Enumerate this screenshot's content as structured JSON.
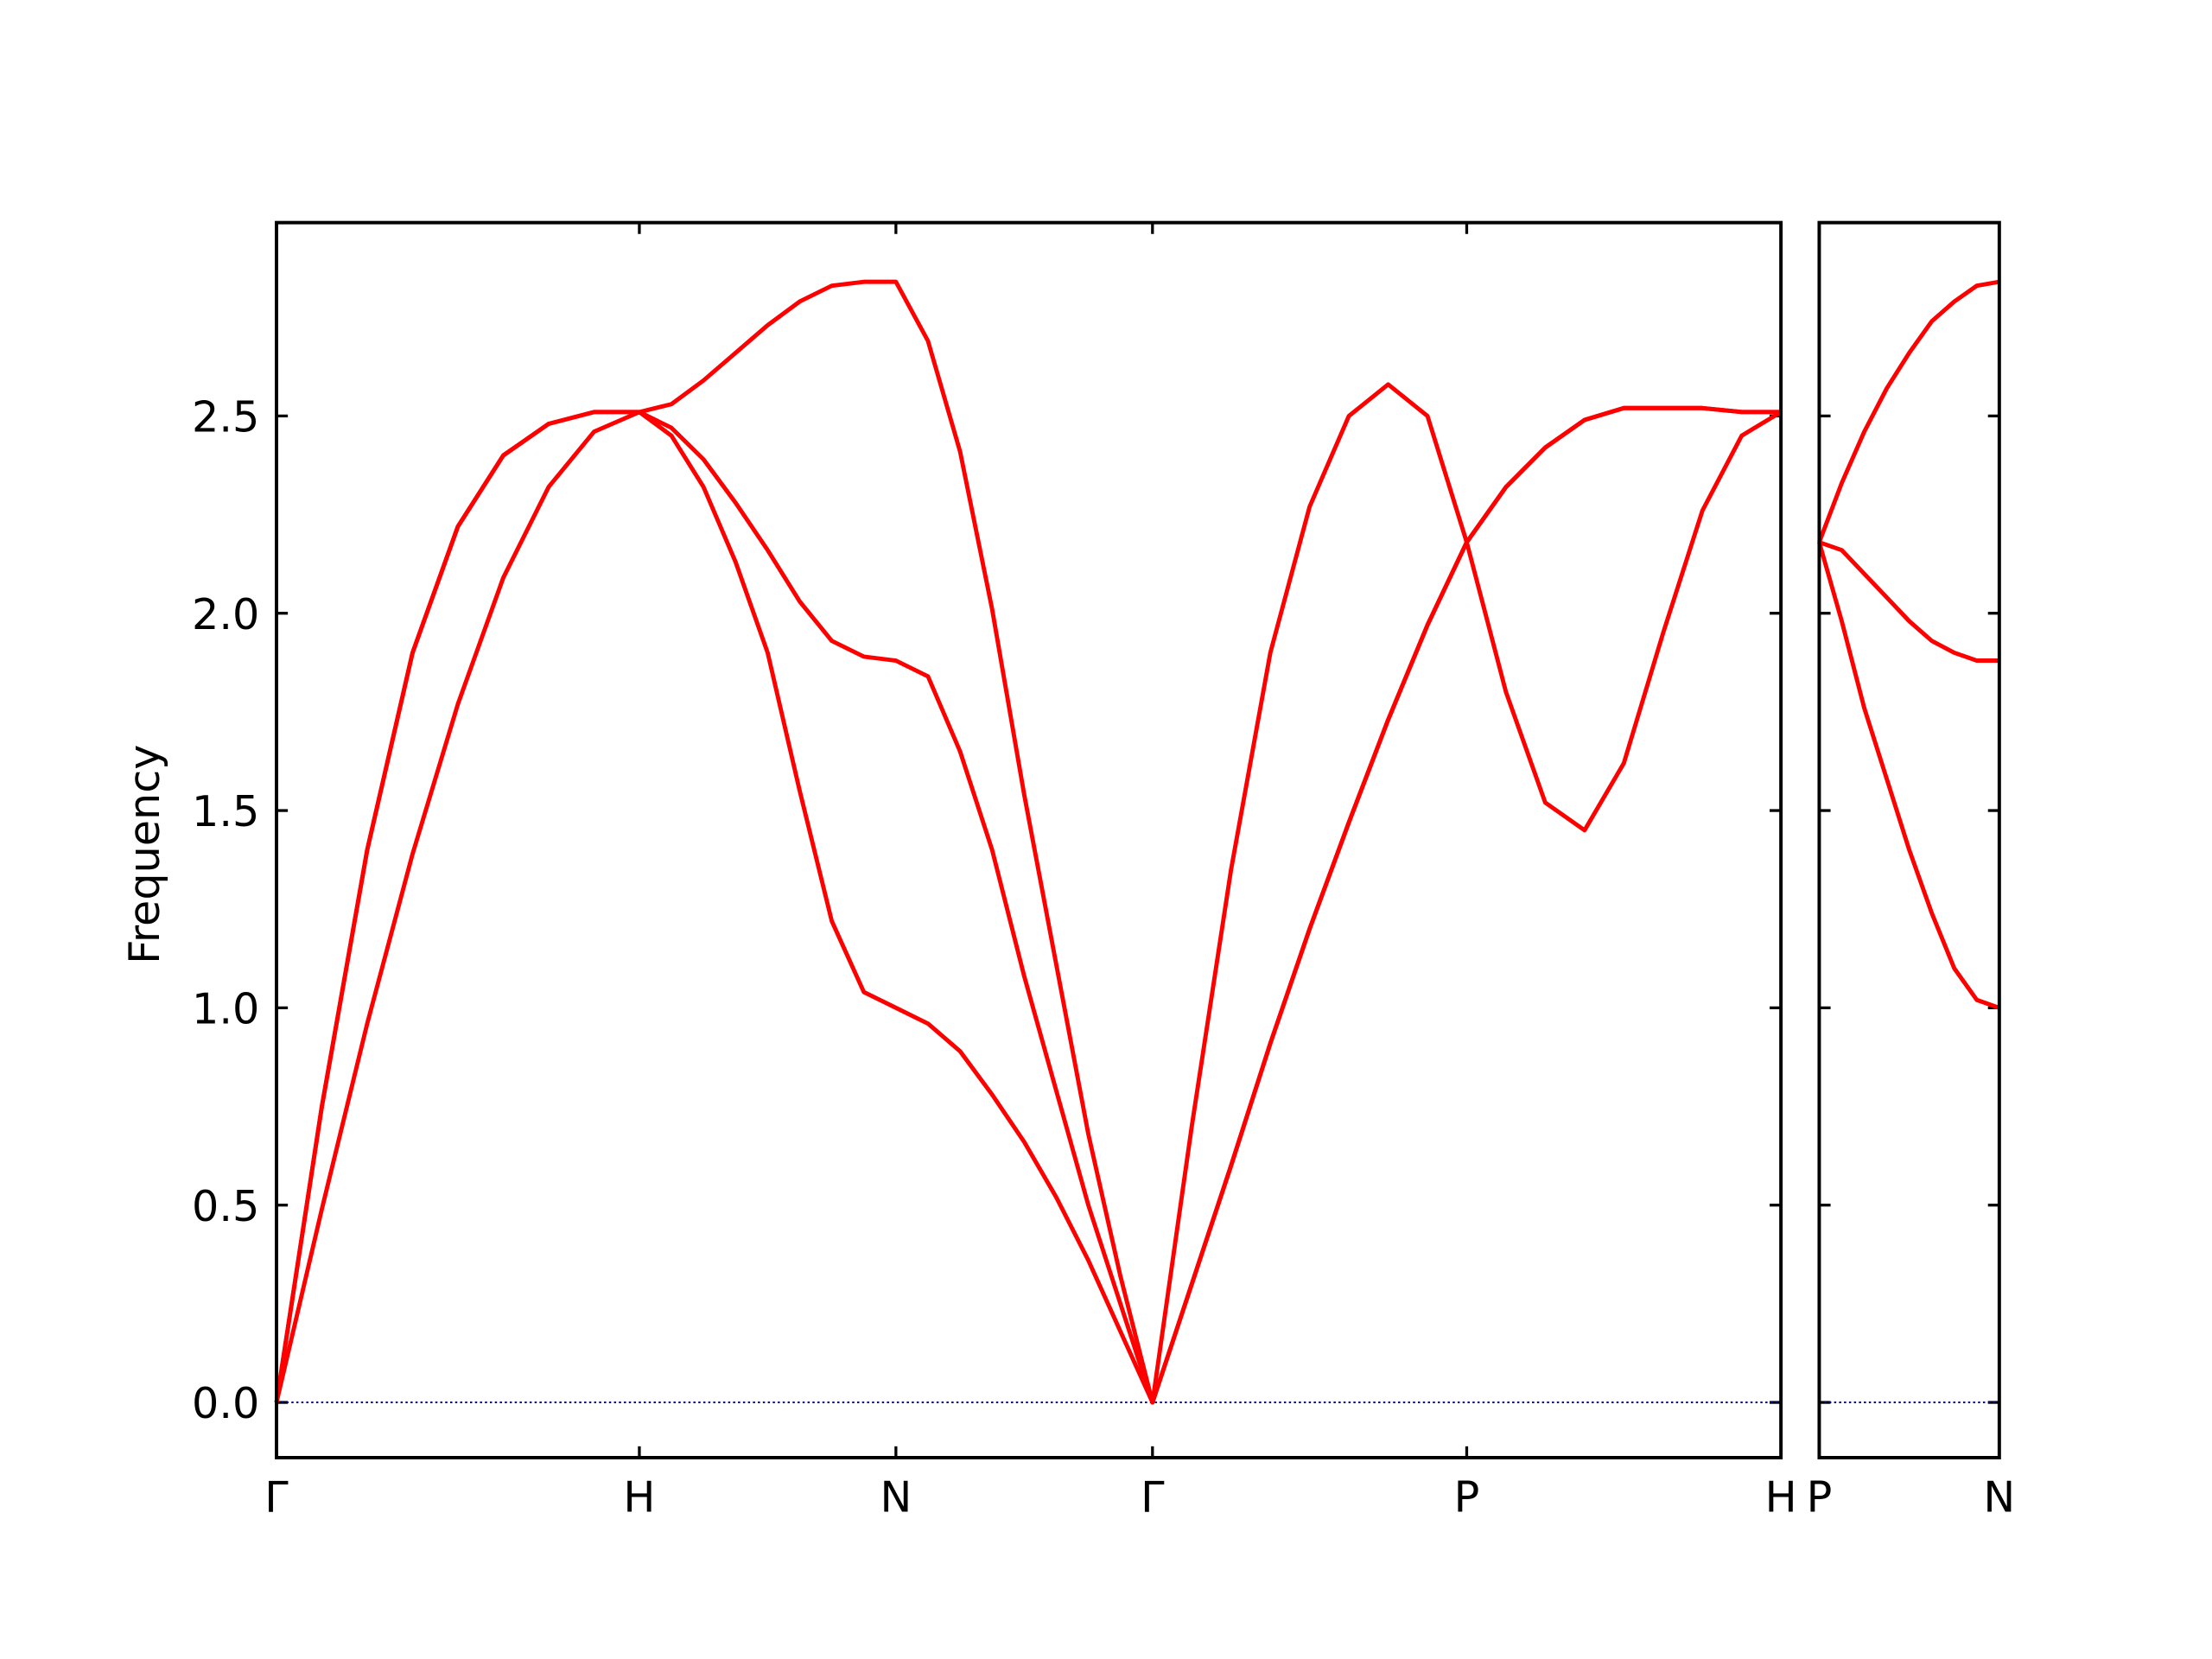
{
  "chart_data": [
    {
      "type": "line",
      "ylabel": "Frequency",
      "xlim": [
        0,
        4.1462
      ],
      "xticks": [
        {
          "value": 0,
          "label": "Γ"
        },
        {
          "value": 1,
          "label": "H"
        },
        {
          "value": 1.7071,
          "label": "N"
        },
        {
          "value": 2.4142,
          "label": "Γ"
        },
        {
          "value": 3.2802,
          "label": "P"
        },
        {
          "value": 4.1462,
          "label": "H"
        }
      ],
      "ylim": [
        -0.14,
        2.99
      ],
      "yticks": [
        {
          "value": 0,
          "label": "0.0"
        },
        0.5,
        {
          "value": 1,
          "label": "1.0"
        },
        1.5,
        {
          "value": 2,
          "label": "2.0"
        },
        2.5
      ],
      "hline": {
        "value": 0,
        "color": "#00008b"
      },
      "x": [
        0,
        0.125,
        0.25,
        0.375,
        0.5,
        0.625,
        0.75,
        0.875,
        1,
        1.0884,
        1.1768,
        1.2652,
        1.3536,
        1.4419,
        1.5303,
        1.6187,
        1.7071,
        1.7955,
        1.8839,
        1.9723,
        2.0607,
        2.149,
        2.2374,
        2.3258,
        2.4142,
        2.5225,
        2.6307,
        2.739,
        2.8472,
        2.9555,
        3.0637,
        3.172,
        3.2802,
        3.3885,
        3.4967,
        3.605,
        3.7132,
        3.8215,
        3.9297,
        4.038,
        4.1462
      ],
      "series": [
        {
          "color": "#ff0000",
          "values": [
            0,
            0.49,
            0.96,
            1.39,
            1.77,
            2.09,
            2.32,
            2.46,
            2.51,
            2.45,
            2.32,
            2.13,
            1.9,
            1.55,
            1.22,
            1.04,
            1.0,
            0.96,
            0.89,
            0.78,
            0.66,
            0.52,
            0.36,
            0.18,
            0,
            0.3,
            0.6,
            0.91,
            1.2,
            1.47,
            1.73,
            1.97,
            2.18,
            2.32,
            2.42,
            2.49,
            2.52,
            2.52,
            2.52,
            2.51,
            2.51
          ]
        },
        {
          "color": "#ff0000",
          "values": [
            0,
            0.75,
            1.4,
            1.9,
            2.22,
            2.4,
            2.48,
            2.51,
            2.51,
            2.47,
            2.39,
            2.28,
            2.16,
            2.03,
            1.93,
            1.89,
            1.88,
            1.84,
            1.65,
            1.4,
            1.08,
            0.79,
            0.5,
            0.25,
            0,
            0.7,
            1.35,
            1.9,
            2.27,
            2.5,
            2.58,
            2.5,
            2.18,
            1.8,
            1.52,
            1.45,
            1.62,
            1.95,
            2.26,
            2.45,
            2.51
          ]
        },
        {
          "color": "#ff0000",
          "values": [
            0,
            0.75,
            1.4,
            1.9,
            2.22,
            2.4,
            2.48,
            2.51,
            2.51,
            2.53,
            2.59,
            2.66,
            2.73,
            2.79,
            2.83,
            2.84,
            2.84,
            2.69,
            2.41,
            2.01,
            1.54,
            1.11,
            0.68,
            0.32,
            0,
            0.3,
            0.6,
            0.91,
            1.2,
            1.47,
            1.73,
            1.97,
            2.18,
            2.32,
            2.42,
            2.49,
            2.52,
            2.52,
            2.52,
            2.51,
            2.51
          ]
        }
      ]
    },
    {
      "type": "line",
      "xlim": [
        0,
        0.5
      ],
      "xticks": [
        {
          "value": 0,
          "label": "P"
        },
        {
          "value": 0.5,
          "label": "N"
        }
      ],
      "ylim": [
        -0.14,
        2.99
      ],
      "yticks": [
        0,
        0.5,
        1,
        1.5,
        2,
        2.5
      ],
      "hline": {
        "value": 0,
        "color": "#00008b"
      },
      "x": [
        0,
        0.0625,
        0.125,
        0.1875,
        0.25,
        0.3125,
        0.375,
        0.4375,
        0.5
      ],
      "series": [
        {
          "color": "#ff0000",
          "values": [
            2.18,
            2.33,
            2.46,
            2.57,
            2.66,
            2.74,
            2.79,
            2.83,
            2.84
          ]
        },
        {
          "color": "#ff0000",
          "values": [
            2.18,
            2.16,
            2.1,
            2.04,
            1.98,
            1.93,
            1.9,
            1.88,
            1.88
          ]
        },
        {
          "color": "#ff0000",
          "values": [
            2.18,
            1.98,
            1.76,
            1.58,
            1.4,
            1.24,
            1.1,
            1.02,
            1.0
          ]
        }
      ]
    }
  ]
}
